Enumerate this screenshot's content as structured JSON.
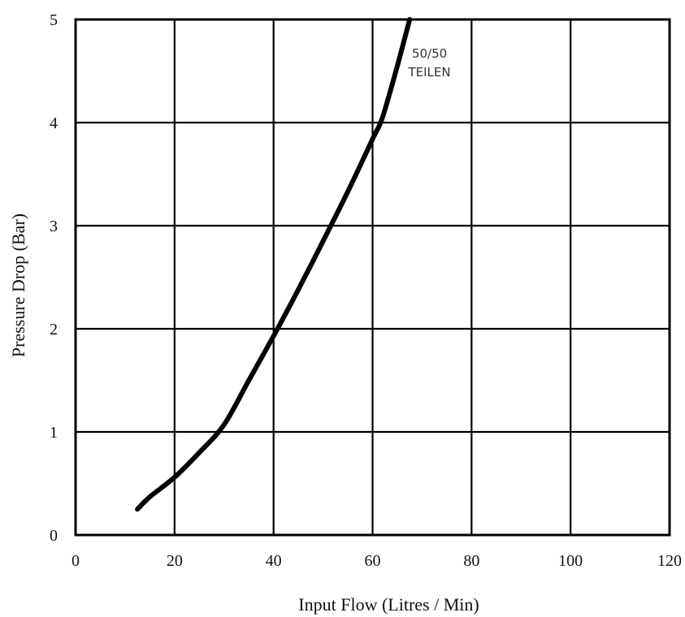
{
  "chart_data": {
    "type": "line",
    "title": "",
    "xlabel": "Input Flow (Litres / Min)",
    "ylabel": "Pressure Drop (Bar)",
    "xlim": [
      0,
      120
    ],
    "ylim": [
      0,
      5
    ],
    "x_ticks": [
      "0",
      "20",
      "40",
      "60",
      "80",
      "100",
      "120"
    ],
    "y_ticks": [
      "0",
      "1",
      "2",
      "3",
      "4",
      "5"
    ],
    "grid": true,
    "series": [
      {
        "name": "",
        "color": "#000000",
        "points": [
          [
            12.5,
            0.25
          ],
          [
            15,
            0.37
          ],
          [
            20,
            0.56
          ],
          [
            25,
            0.8
          ],
          [
            30,
            1.07
          ],
          [
            35,
            1.5
          ],
          [
            40,
            1.93
          ],
          [
            45,
            2.38
          ],
          [
            50,
            2.85
          ],
          [
            55,
            3.33
          ],
          [
            60,
            3.84
          ],
          [
            62,
            4.05
          ],
          [
            65,
            4.55
          ],
          [
            67.5,
            5.0
          ]
        ]
      }
    ],
    "annotations": [
      {
        "lines": [
          "50/50",
          "TEILEN"
        ],
        "x": 71.5,
        "y": 4.63
      }
    ]
  }
}
